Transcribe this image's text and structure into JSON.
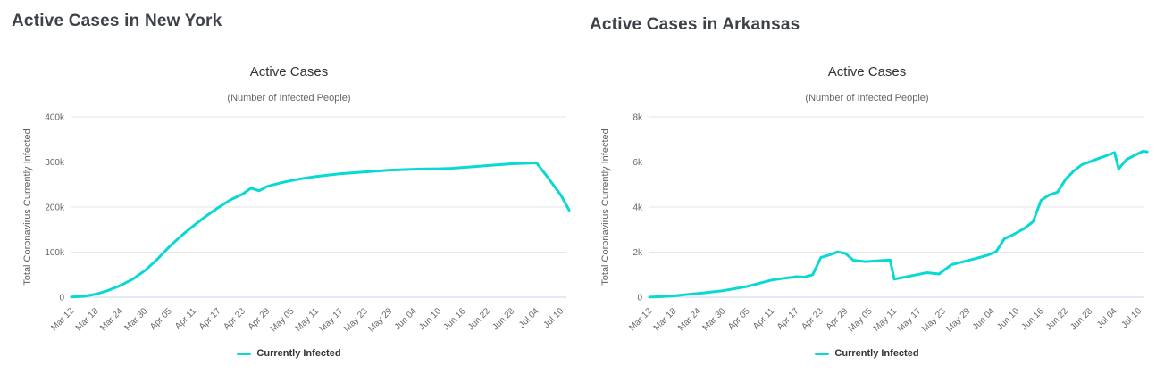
{
  "charts": [
    {
      "heading": "Active Cases in New York",
      "title": "Active Cases",
      "subtitle": "(Number of Infected People)",
      "y_axis_label": "Total Coronavirus Currently Infected",
      "legend_label": "Currently Infected",
      "line_color": "#0ad8d2"
    },
    {
      "heading": "Active Cases in Arkansas",
      "title": "Active Cases",
      "subtitle": "(Number of Infected People)",
      "y_axis_label": "Total Coronavirus Currently Infected",
      "legend_label": "Currently Infected",
      "line_color": "#0ad8d2"
    }
  ],
  "chart_data": [
    {
      "type": "line",
      "title": "Active Cases",
      "subtitle": "(Number of Infected People)",
      "xlabel": "",
      "ylabel": "Total Coronavirus Currently Infected",
      "ylim": [
        0,
        400000
      ],
      "yticks": [
        0,
        100000,
        200000,
        300000,
        400000
      ],
      "ytick_labels": [
        "0",
        "100k",
        "200k",
        "300k",
        "400k"
      ],
      "xtick_labels": [
        "Mar 12",
        "Mar 18",
        "Mar 24",
        "Mar 30",
        "Apr 05",
        "Apr 11",
        "Apr 17",
        "Apr 23",
        "Apr 29",
        "May 05",
        "May 11",
        "May 17",
        "May 23",
        "May 29",
        "Jun 04",
        "Jun 10",
        "Jun 16",
        "Jun 22",
        "Jun 28",
        "Jul 04",
        "Jul 10"
      ],
      "grid": "horizontal",
      "legend_position": "bottom",
      "series": [
        {
          "name": "Currently Infected",
          "color": "#0ad8d2",
          "points": [
            [
              "Mar 12",
              300
            ],
            [
              "Mar 15",
              1800
            ],
            [
              "Mar 18",
              7000
            ],
            [
              "Mar 21",
              15000
            ],
            [
              "Mar 24",
              26000
            ],
            [
              "Mar 27",
              40000
            ],
            [
              "Mar 30",
              59000
            ],
            [
              "Apr 02",
              84000
            ],
            [
              "Apr 05",
              112000
            ],
            [
              "Apr 08",
              137000
            ],
            [
              "Apr 11",
              159000
            ],
            [
              "Apr 14",
              180000
            ],
            [
              "Apr 17",
              199000
            ],
            [
              "Apr 20",
              216000
            ],
            [
              "Apr 23",
              229000
            ],
            [
              "Apr 25",
              242000
            ],
            [
              "Apr 27",
              236000
            ],
            [
              "Apr 29",
              246000
            ],
            [
              "May 02",
              253000
            ],
            [
              "May 05",
              259000
            ],
            [
              "May 08",
              264000
            ],
            [
              "May 11",
              268000
            ],
            [
              "May 14",
              271000
            ],
            [
              "May 17",
              274000
            ],
            [
              "May 20",
              276000
            ],
            [
              "May 23",
              278000
            ],
            [
              "May 26",
              280000
            ],
            [
              "May 29",
              282000
            ],
            [
              "Jun 01",
              283000
            ],
            [
              "Jun 04",
              284000
            ],
            [
              "Jun 07",
              284500
            ],
            [
              "Jun 10",
              285000
            ],
            [
              "Jun 13",
              286000
            ],
            [
              "Jun 16",
              288000
            ],
            [
              "Jun 19",
              290000
            ],
            [
              "Jun 22",
              292000
            ],
            [
              "Jun 25",
              294000
            ],
            [
              "Jun 28",
              296000
            ],
            [
              "Jul 01",
              297000
            ],
            [
              "Jul 04",
              298000
            ],
            [
              "Jul 07",
              263000
            ],
            [
              "Jul 10",
              226000
            ],
            [
              "Jul 12",
              193000
            ]
          ]
        }
      ]
    },
    {
      "type": "line",
      "title": "Active Cases",
      "subtitle": "(Number of Infected People)",
      "xlabel": "",
      "ylabel": "Total Coronavirus Currently Infected",
      "ylim": [
        0,
        8000
      ],
      "yticks": [
        0,
        2000,
        4000,
        6000,
        8000
      ],
      "ytick_labels": [
        "0",
        "2k",
        "4k",
        "6k",
        "8k"
      ],
      "xtick_labels": [
        "Mar 12",
        "Mar 18",
        "Mar 24",
        "Mar 30",
        "Apr 05",
        "Apr 11",
        "Apr 17",
        "Apr 23",
        "Apr 29",
        "May 05",
        "May 11",
        "May 17",
        "May 23",
        "May 29",
        "Jun 04",
        "Jun 10",
        "Jun 16",
        "Jun 22",
        "Jun 28",
        "Jul 04",
        "Jul 10"
      ],
      "grid": "horizontal",
      "legend_position": "bottom",
      "series": [
        {
          "name": "Currently Infected",
          "color": "#0ad8d2",
          "points": [
            [
              "Mar 12",
              5
            ],
            [
              "Mar 15",
              25
            ],
            [
              "Mar 18",
              60
            ],
            [
              "Mar 21",
              120
            ],
            [
              "Mar 24",
              170
            ],
            [
              "Mar 27",
              230
            ],
            [
              "Mar 30",
              290
            ],
            [
              "Apr 02",
              380
            ],
            [
              "Apr 05",
              480
            ],
            [
              "Apr 08",
              620
            ],
            [
              "Apr 11",
              760
            ],
            [
              "Apr 14",
              840
            ],
            [
              "Apr 17",
              910
            ],
            [
              "Apr 19",
              890
            ],
            [
              "Apr 21",
              1000
            ],
            [
              "Apr 23",
              1760
            ],
            [
              "Apr 26",
              1930
            ],
            [
              "Apr 27",
              2010
            ],
            [
              "Apr 29",
              1950
            ],
            [
              "May 01",
              1640
            ],
            [
              "May 04",
              1580
            ],
            [
              "May 07",
              1620
            ],
            [
              "May 10",
              1650
            ],
            [
              "May 11",
              800
            ],
            [
              "May 13",
              870
            ],
            [
              "May 16",
              980
            ],
            [
              "May 19",
              1090
            ],
            [
              "May 22",
              1030
            ],
            [
              "May 25",
              1440
            ],
            [
              "May 28",
              1580
            ],
            [
              "May 31",
              1720
            ],
            [
              "Jun 03",
              1870
            ],
            [
              "Jun 05",
              2030
            ],
            [
              "Jun 07",
              2600
            ],
            [
              "Jun 09",
              2760
            ],
            [
              "Jun 12",
              3060
            ],
            [
              "Jun 14",
              3350
            ],
            [
              "Jun 16",
              4300
            ],
            [
              "Jun 18",
              4540
            ],
            [
              "Jun 20",
              4660
            ],
            [
              "Jun 22",
              5230
            ],
            [
              "Jun 24",
              5600
            ],
            [
              "Jun 26",
              5880
            ],
            [
              "Jun 28",
              6010
            ],
            [
              "Jun 30",
              6150
            ],
            [
              "Jul 02",
              6280
            ],
            [
              "Jul 04",
              6420
            ],
            [
              "Jul 05",
              5700
            ],
            [
              "Jul 07",
              6120
            ],
            [
              "Jul 09",
              6300
            ],
            [
              "Jul 11",
              6480
            ],
            [
              "Jul 12",
              6450
            ]
          ]
        }
      ]
    }
  ]
}
